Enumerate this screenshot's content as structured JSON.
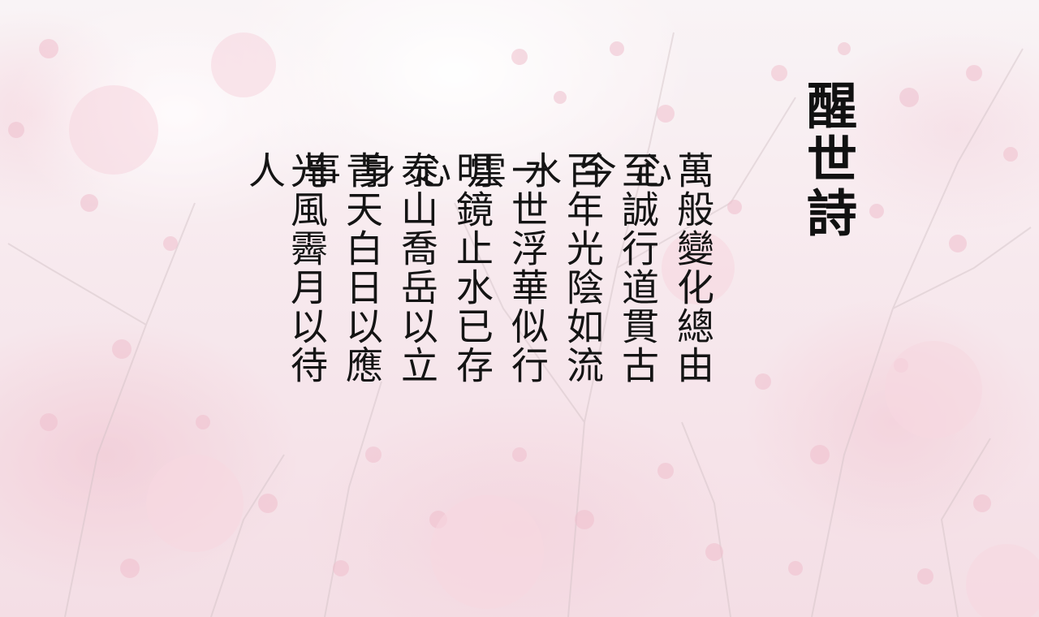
{
  "title": "醒世詩",
  "poem": {
    "lines": [
      "萬般變化總由心",
      "至誠行道貫古今",
      "百年光陰如流水",
      "一世浮華似行雲",
      "明鏡止水已存心",
      "泰山喬岳以立身",
      "青天白日以應事",
      "光風霽月以待人"
    ]
  },
  "colors": {
    "text": "#141414",
    "background_pink": "#efcdd8",
    "background_light": "#f6eef1"
  },
  "background_image": "plum-blossom-photo"
}
